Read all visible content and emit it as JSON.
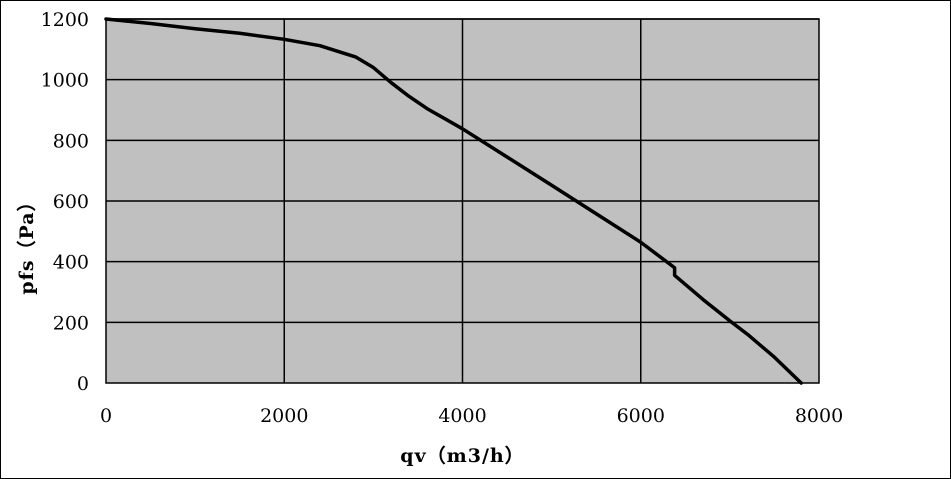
{
  "chart_data": {
    "type": "line",
    "title": "",
    "xlabel": "qv（m3/h）",
    "ylabel": "pfs（Pa）",
    "xlim": [
      0,
      8000
    ],
    "ylim": [
      0,
      1200
    ],
    "xticks": [
      "0",
      "2000",
      "4000",
      "6000",
      "8000"
    ],
    "yticks": [
      "0",
      "200",
      "400",
      "600",
      "800",
      "1000",
      "1200"
    ],
    "grid": true,
    "legend": "none",
    "plot_background": "#c0c0c0",
    "line_color": "#000000",
    "series": [
      {
        "x": [
          0,
          500,
          1000,
          1500,
          2000,
          2400,
          2800,
          3000,
          3200,
          3400,
          3600,
          4000,
          4500,
          5000,
          5500,
          6000,
          6380,
          6380,
          6700,
          7000,
          7200,
          7500,
          7800
        ],
        "y": [
          1200,
          1185,
          1168,
          1153,
          1133,
          1112,
          1075,
          1040,
          990,
          945,
          905,
          838,
          745,
          652,
          558,
          464,
          380,
          355,
          275,
          205,
          160,
          85,
          0
        ]
      }
    ]
  }
}
